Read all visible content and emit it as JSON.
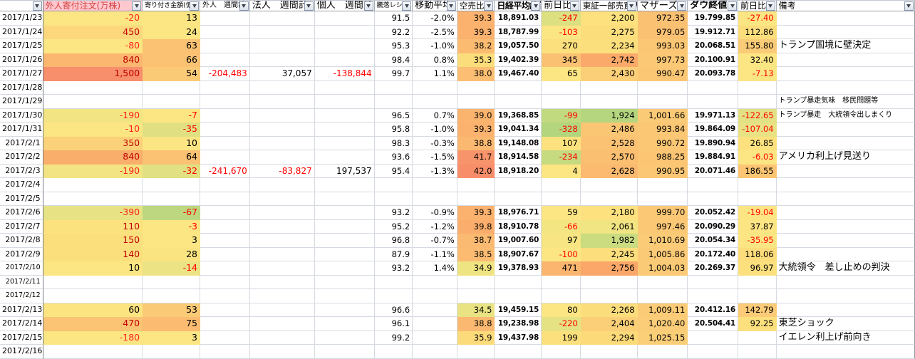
{
  "sheet": {
    "grid_color": "#d6dae2",
    "accent_header_bg": "#FFC7CE",
    "accent_header_fg": "#D24040",
    "negative_color": "#FF0000",
    "positive_strong_color": "#C00000"
  },
  "columns": [
    {
      "key": "date",
      "label": "",
      "width": 60,
      "cls": "c-date",
      "thCls": "th-a"
    },
    {
      "key": "b",
      "label": "外人寄付注文(万株)",
      "width": 138,
      "cls": "c-b",
      "thCls": "th-b"
    },
    {
      "key": "c",
      "label": "寄り付き金額(億)",
      "width": 80,
      "cls": "c-c",
      "thCls": "th-c"
    },
    {
      "key": "d",
      "label": "外人　週間計",
      "width": 69,
      "cls": "c-d",
      "thCls": "th-d"
    },
    {
      "key": "e",
      "label": "法人　週間計",
      "width": 90,
      "cls": "c-e",
      "thCls": "th-e"
    },
    {
      "key": "f",
      "label": "個人　週間計",
      "width": 83,
      "cls": "c-f",
      "thCls": "th-f"
    },
    {
      "key": "g",
      "label": "騰落レシオ",
      "width": 53,
      "cls": "c-g",
      "thCls": "th-g"
    },
    {
      "key": "h",
      "label": "移動平均",
      "width": 62,
      "cls": "c-h",
      "thCls": "th-h"
    },
    {
      "key": "i",
      "label": "空売比率",
      "width": 52,
      "cls": "c-i",
      "thCls": "th-i"
    },
    {
      "key": "j",
      "label": "日経平均終値",
      "width": 65,
      "cls": "c-j",
      "thCls": "th-j"
    },
    {
      "key": "k",
      "label": "前日比",
      "width": 54,
      "cls": "c-k",
      "thCls": "th-k"
    },
    {
      "key": "l",
      "label": "東証一部売買代金",
      "width": 79,
      "cls": "c-l",
      "thCls": "th-l"
    },
    {
      "key": "m",
      "label": "マザーズ",
      "width": 70,
      "cls": "c-m",
      "thCls": "th-m"
    },
    {
      "key": "n",
      "label": "ダウ終値",
      "width": 70,
      "cls": "c-n",
      "thCls": "th-n"
    },
    {
      "key": "o",
      "label": "前日比",
      "width": 53,
      "cls": "c-o",
      "thCls": "th-o"
    },
    {
      "key": "p",
      "label": "備考",
      "width": 192,
      "cls": "c-p",
      "thCls": "th-p"
    },
    {
      "key": "filler",
      "label": "",
      "width": 14,
      "cls": "c-filler",
      "thCls": "th-filler",
      "noFilter": true
    }
  ],
  "rows": [
    {
      "date": "2017/1/23",
      "cells": {
        "b": {
          "v": "-20",
          "bg": "#FCE583",
          "fg": "#FF2020"
        },
        "c": {
          "v": "13",
          "bg": "#FCE583"
        },
        "g": {
          "v": "91.5"
        },
        "h": {
          "v": "-2.0%"
        },
        "i": {
          "v": "39.3",
          "bg": "#FBB26E"
        },
        "j": {
          "v": "18,891.03"
        },
        "k": {
          "v": "-247",
          "bg": "#DDE081",
          "fg": "#FF0000"
        },
        "l": {
          "v": "2,200",
          "bg": "#FCE17E"
        },
        "m": {
          "v": "972.35",
          "bg": "#FBC173"
        },
        "n": {
          "v": "19.799.85"
        },
        "o": {
          "v": "-27.40",
          "bg": "#FCE583",
          "fg": "#FF0000"
        }
      }
    },
    {
      "date": "2017/1/24",
      "cells": {
        "b": {
          "v": "450",
          "bg": "#FCD77B",
          "fg": "#C00000"
        },
        "c": {
          "v": "24",
          "bg": "#FCE583"
        },
        "g": {
          "v": "92.2"
        },
        "h": {
          "v": "-2.5%"
        },
        "i": {
          "v": "39.3",
          "bg": "#FBB26E"
        },
        "j": {
          "v": "18,787.99"
        },
        "k": {
          "v": "-103",
          "bg": "#FCE583",
          "fg": "#FF0000"
        },
        "l": {
          "v": "2,275",
          "bg": "#FCDD7C"
        },
        "m": {
          "v": "979.05",
          "bg": "#FBC173"
        },
        "n": {
          "v": "19.912.71"
        },
        "o": {
          "v": "112.86",
          "bg": "#FCDD7C"
        }
      }
    },
    {
      "date": "2017/1/25",
      "cells": {
        "b": {
          "v": "-80",
          "bg": "#FCE583",
          "fg": "#FF2020"
        },
        "c": {
          "v": "63",
          "bg": "#FBC274"
        },
        "g": {
          "v": "95.3"
        },
        "h": {
          "v": "-1.0%"
        },
        "i": {
          "v": "38.2",
          "bg": "#FBBC72"
        },
        "j": {
          "v": "19,057.50"
        },
        "k": {
          "v": "270",
          "bg": "#FCE07D"
        },
        "l": {
          "v": "2,234",
          "bg": "#FCDF7D"
        },
        "m": {
          "v": "993.03",
          "bg": "#FBC775"
        },
        "n": {
          "v": "20.068.51"
        },
        "o": {
          "v": "155.80",
          "bg": "#FBCC77"
        },
        "p": {
          "v": "トランプ国境に壁決定"
        }
      }
    },
    {
      "date": "2017/1/26",
      "cells": {
        "b": {
          "v": "840",
          "bg": "#FBB76F",
          "fg": "#C00000"
        },
        "c": {
          "v": "66",
          "bg": "#FBC274"
        },
        "g": {
          "v": "98.4"
        },
        "h": {
          "v": "0.8%"
        },
        "i": {
          "v": "35.3",
          "bg": "#FCDD7C"
        },
        "j": {
          "v": "19,402.39"
        },
        "k": {
          "v": "345",
          "bg": "#FBC173"
        },
        "l": {
          "v": "2,742",
          "bg": "#FAA96A"
        },
        "m": {
          "v": "997.73",
          "bg": "#FBC875"
        },
        "n": {
          "v": "20.100.91"
        },
        "o": {
          "v": "32.40",
          "bg": "#FCE583"
        }
      }
    },
    {
      "date": "2017/1/27",
      "cells": {
        "b": {
          "v": "1,500",
          "bg": "#F78E6C",
          "fg": "#C00000"
        },
        "c": {
          "v": "54",
          "bg": "#FBCA77"
        },
        "d": {
          "v": "-204,483",
          "fg": "#FF0000"
        },
        "e": {
          "v": "37,057"
        },
        "f": {
          "v": "-138,844",
          "fg": "#FF0000"
        },
        "g": {
          "v": "99.7"
        },
        "h": {
          "v": "1.1%"
        },
        "i": {
          "v": "38.0",
          "bg": "#FBBE72"
        },
        "j": {
          "v": "19,467.40"
        },
        "k": {
          "v": "65",
          "bg": "#FCE583"
        },
        "l": {
          "v": "2,430",
          "bg": "#FBCE78"
        },
        "m": {
          "v": "990.47",
          "bg": "#FBC775"
        },
        "n": {
          "v": "20.093.78"
        },
        "o": {
          "v": "-7.13",
          "bg": "#FCE583",
          "fg": "#FF0000"
        }
      }
    },
    {
      "date": "2017/1/28",
      "cells": {}
    },
    {
      "date": "2017/1/29",
      "cells": {
        "p": {
          "v": "トランプ暴走気味　移民問題等",
          "fs": 10
        }
      }
    },
    {
      "date": "2017/1/30",
      "cells": {
        "b": {
          "v": "-190",
          "bg": "#F2E483",
          "fg": "#FF2020"
        },
        "c": {
          "v": "-7",
          "bg": "#FCE583",
          "fg": "#FF0000"
        },
        "g": {
          "v": "96.5"
        },
        "h": {
          "v": "0.7%"
        },
        "i": {
          "v": "39.0",
          "bg": "#FBB46E"
        },
        "j": {
          "v": "19,368.85"
        },
        "k": {
          "v": "-99",
          "bg": "#C1D97F",
          "fg": "#FF0000"
        },
        "l": {
          "v": "1,924",
          "bg": "#B5D67E"
        },
        "m": {
          "v": "1,001.66",
          "bg": "#FBCA76"
        },
        "n": {
          "v": "19.971.13"
        },
        "o": {
          "v": "-122.65",
          "bg": "#E2E183",
          "fg": "#FF0000"
        },
        "p": {
          "v": "トランプ暴走　大統領令出しまくり",
          "fs": 10
        }
      }
    },
    {
      "date": "2017/1/31",
      "cells": {
        "b": {
          "v": "-10",
          "bg": "#FCE583",
          "fg": "#FF2020"
        },
        "c": {
          "v": "-35",
          "bg": "#E0E082",
          "fg": "#FF0000"
        },
        "g": {
          "v": "95.8"
        },
        "h": {
          "v": "-1.0%"
        },
        "i": {
          "v": "39.3",
          "bg": "#FBB26E"
        },
        "j": {
          "v": "19,041.34"
        },
        "k": {
          "v": "-328",
          "bg": "#B2D57D",
          "fg": "#FF0000"
        },
        "l": {
          "v": "2,486",
          "bg": "#FBC674"
        },
        "m": {
          "v": "993.84",
          "bg": "#FBC775"
        },
        "n": {
          "v": "19.864.09"
        },
        "o": {
          "v": "-107.04",
          "bg": "#E8E284",
          "fg": "#FF0000"
        }
      }
    },
    {
      "date": "2017/2/1",
      "cells": {
        "b": {
          "v": "350",
          "bg": "#FBD279",
          "fg": "#C00000"
        },
        "c": {
          "v": "10",
          "bg": "#FCE583"
        },
        "g": {
          "v": "98.3"
        },
        "h": {
          "v": "-0.3%"
        },
        "i": {
          "v": "38.8",
          "bg": "#FBB870"
        },
        "j": {
          "v": "19,148.08"
        },
        "k": {
          "v": "107",
          "bg": "#FCE27E"
        },
        "l": {
          "v": "2,528",
          "bg": "#FBC273"
        },
        "m": {
          "v": "990.72",
          "bg": "#FBC775"
        },
        "n": {
          "v": "19.890.94"
        },
        "o": {
          "v": "26.85",
          "bg": "#FCE17E"
        }
      }
    },
    {
      "date": "2017/2/2",
      "cells": {
        "b": {
          "v": "840",
          "bg": "#FAAE6C",
          "fg": "#C00000"
        },
        "c": {
          "v": "64",
          "bg": "#FBC274"
        },
        "g": {
          "v": "93.6"
        },
        "h": {
          "v": "-1.5%"
        },
        "i": {
          "v": "41.7",
          "bg": "#F8946B"
        },
        "j": {
          "v": "18,914.58"
        },
        "k": {
          "v": "-234",
          "bg": "#C6DA80",
          "fg": "#FF0000"
        },
        "l": {
          "v": "2,570",
          "bg": "#FBBF72"
        },
        "m": {
          "v": "988.25",
          "bg": "#FBC574"
        },
        "n": {
          "v": "19.884.91"
        },
        "o": {
          "v": "-6.03",
          "bg": "#FCE583",
          "fg": "#FF0000"
        },
        "p": {
          "v": "アメリカ利上げ見送り"
        }
      }
    },
    {
      "date": "2017/2/3",
      "cells": {
        "b": {
          "v": "-190",
          "bg": "#F2E483",
          "fg": "#FF2020"
        },
        "c": {
          "v": "-32",
          "bg": "#E1E183",
          "fg": "#FF0000"
        },
        "d": {
          "v": "-241,670",
          "fg": "#FF0000"
        },
        "e": {
          "v": "-83,827",
          "fg": "#FF0000"
        },
        "f": {
          "v": "197,537"
        },
        "g": {
          "v": "95.4"
        },
        "h": {
          "v": "-1.3%"
        },
        "i": {
          "v": "42.0",
          "bg": "#F88E69"
        },
        "j": {
          "v": "18,918.20"
        },
        "k": {
          "v": "4",
          "bg": "#FCE583"
        },
        "l": {
          "v": "2,628",
          "bg": "#FBBA70"
        },
        "m": {
          "v": "990.95",
          "bg": "#FBC775"
        },
        "n": {
          "v": "20.071.46"
        },
        "o": {
          "v": "186.55",
          "bg": "#FBC573"
        }
      }
    },
    {
      "date": "2017/2/4",
      "cells": {}
    },
    {
      "date": "2017/2/5",
      "cells": {}
    },
    {
      "date": "2017/2/6",
      "cells": {
        "b": {
          "v": "-390",
          "bg": "#E7E283",
          "fg": "#FF2020"
        },
        "c": {
          "v": "-67",
          "bg": "#BCD77F",
          "fg": "#FF0000"
        },
        "g": {
          "v": "93.2"
        },
        "h": {
          "v": "-0.9%"
        },
        "i": {
          "v": "39.3",
          "bg": "#FBB26E"
        },
        "j": {
          "v": "18,976.71"
        },
        "k": {
          "v": "59",
          "bg": "#FCE583"
        },
        "l": {
          "v": "2,180",
          "bg": "#FCE17E"
        },
        "m": {
          "v": "999.70",
          "bg": "#FBC976"
        },
        "n": {
          "v": "20.052.42"
        },
        "o": {
          "v": "-19.04",
          "bg": "#FCE583",
          "fg": "#FF0000"
        }
      }
    },
    {
      "date": "2017/2/7",
      "cells": {
        "b": {
          "v": "110",
          "bg": "#FCE27E",
          "fg": "#C00000"
        },
        "c": {
          "v": "-3",
          "bg": "#FCE583",
          "fg": "#FF0000"
        },
        "g": {
          "v": "95.2"
        },
        "h": {
          "v": "-1.2%"
        },
        "i": {
          "v": "39.8",
          "bg": "#FAAD6C"
        },
        "j": {
          "v": "18,910.78"
        },
        "k": {
          "v": "-66",
          "bg": "#F4E583",
          "fg": "#FF0000"
        },
        "l": {
          "v": "2,061",
          "bg": "#F0E483"
        },
        "m": {
          "v": "997.46",
          "bg": "#FBC875"
        },
        "n": {
          "v": "20.090.29"
        },
        "o": {
          "v": "37.87",
          "bg": "#FCE583"
        }
      }
    },
    {
      "date": "2017/2/8",
      "cells": {
        "b": {
          "v": "150",
          "bg": "#FCDF7D",
          "fg": "#C00000"
        },
        "c": {
          "v": "3",
          "bg": "#FCE583"
        },
        "g": {
          "v": "96.8"
        },
        "h": {
          "v": "-0.7%"
        },
        "i": {
          "v": "38.7",
          "bg": "#FBBA71"
        },
        "j": {
          "v": "19,007.60"
        },
        "k": {
          "v": "97",
          "bg": "#F6E582"
        },
        "l": {
          "v": "1,982",
          "bg": "#CADB80"
        },
        "m": {
          "v": "1,010.69",
          "bg": "#FBCB77"
        },
        "n": {
          "v": "20.054.34"
        },
        "o": {
          "v": "-35.95",
          "bg": "#FCE583",
          "fg": "#FF0000"
        }
      }
    },
    {
      "date": "2017/2/9",
      "cells": {
        "b": {
          "v": "140",
          "bg": "#FCDF7D",
          "fg": "#C00000"
        },
        "c": {
          "v": "28",
          "bg": "#F9E481"
        },
        "g": {
          "v": "87.9"
        },
        "h": {
          "v": "-1.1%"
        },
        "i": {
          "v": "38.5",
          "bg": "#FBBC72"
        },
        "j": {
          "v": "18,907.67"
        },
        "k": {
          "v": "-100",
          "bg": "#FCE583",
          "fg": "#FF0000"
        },
        "l": {
          "v": "2,245",
          "bg": "#FCDE7C"
        },
        "m": {
          "v": "1,005.86",
          "bg": "#FBCA76"
        },
        "n": {
          "v": "20.172.40"
        },
        "o": {
          "v": "118.06",
          "bg": "#FCDC7B"
        }
      }
    },
    {
      "date": "2017/2/10",
      "small": true,
      "cells": {
        "b": {
          "v": "10",
          "bg": "#FCE583"
        },
        "c": {
          "v": "-14",
          "bg": "#EBE384",
          "fg": "#FF0000"
        },
        "g": {
          "v": "93.2"
        },
        "h": {
          "v": "1.4%"
        },
        "i": {
          "v": "34.9",
          "bg": "#EFE482"
        },
        "j": {
          "v": "19,378.93"
        },
        "k": {
          "v": "471",
          "bg": "#FBB56F"
        },
        "l": {
          "v": "2,756",
          "bg": "#FAA769"
        },
        "m": {
          "v": "1,004.03",
          "bg": "#FBCA76"
        },
        "n": {
          "v": "20.269.37"
        },
        "o": {
          "v": "96.97",
          "bg": "#FCE07E"
        },
        "p": {
          "v": "大統領令　差し止めの判決"
        }
      }
    },
    {
      "date": "2017/2/11",
      "small": true,
      "cells": {}
    },
    {
      "date": "2017/2/12",
      "small": true,
      "cells": {}
    },
    {
      "date": "2017/2/13",
      "cells": {
        "b": {
          "v": "60",
          "bg": "#FCE481"
        },
        "c": {
          "v": "53",
          "bg": "#FBCA76"
        },
        "g": {
          "v": "96.6"
        },
        "i": {
          "v": "34.5",
          "bg": "#E9E383"
        },
        "j": {
          "v": "19,459.15"
        },
        "k": {
          "v": "80",
          "bg": "#FCE583"
        },
        "l": {
          "v": "2,268",
          "bg": "#FCDD7C"
        },
        "m": {
          "v": "1,009.11",
          "bg": "#FBCB77"
        },
        "n": {
          "v": "20.412.16"
        },
        "o": {
          "v": "142.79",
          "bg": "#FBCB77"
        }
      }
    },
    {
      "date": "2017/2/14",
      "cells": {
        "b": {
          "v": "470",
          "bg": "#FBC374",
          "fg": "#C00000"
        },
        "c": {
          "v": "75",
          "bg": "#FBBC71"
        },
        "g": {
          "v": "96.1"
        },
        "i": {
          "v": "38.8",
          "bg": "#FBB870"
        },
        "j": {
          "v": "19,238.98"
        },
        "k": {
          "v": "-220",
          "bg": "#E5E283",
          "fg": "#FF0000"
        },
        "l": {
          "v": "2,404",
          "bg": "#FBCF78"
        },
        "m": {
          "v": "1,020.40",
          "bg": "#FBCD78"
        },
        "n": {
          "v": "20.504.41"
        },
        "o": {
          "v": "92.25",
          "bg": "#FCE07E"
        },
        "p": {
          "v": "東芝ショック"
        }
      }
    },
    {
      "date": "2017/2/15",
      "cells": {
        "b": {
          "v": "-180",
          "bg": "#FCE583",
          "fg": "#FF2020"
        },
        "c": {
          "v": "3",
          "bg": "#FCE583"
        },
        "g": {
          "v": "99.2"
        },
        "i": {
          "v": "35.9",
          "bg": "#FCDB7B"
        },
        "j": {
          "v": "19,437.98"
        },
        "k": {
          "v": "199",
          "bg": "#FCE07D"
        },
        "l": {
          "v": "2,294",
          "bg": "#FCDA7A"
        },
        "m": {
          "v": "1,025.15",
          "bg": "#FBCE78"
        },
        "p": {
          "v": "イエレン利上げ前向き"
        }
      }
    },
    {
      "date": "2017/2/16",
      "cells": {}
    }
  ]
}
